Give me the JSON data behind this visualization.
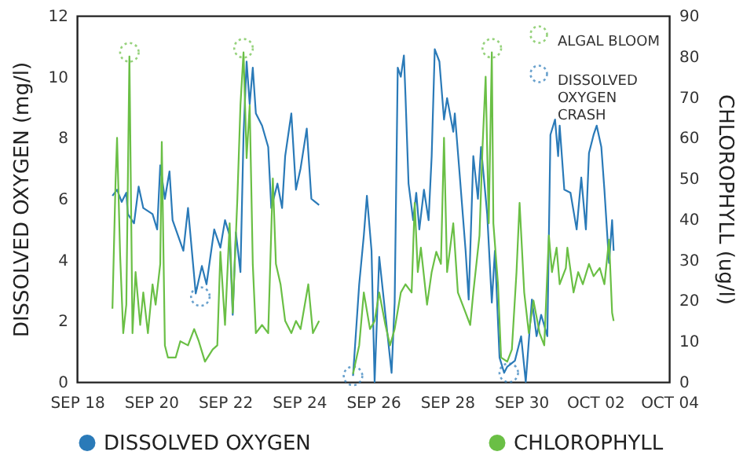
{
  "chart_data": {
    "type": "line",
    "xlabel": null,
    "ylabel": "DISSOLVED OXYGEN (mg/l)",
    "y2label": "CHLOROPHYLL (ug/l)",
    "xlim": [
      "--09-18",
      "--10-04"
    ],
    "xticks": [
      {
        "value": "--09-18",
        "label": "SEP 18"
      },
      {
        "value": "--09-20",
        "label": "SEP 20"
      },
      {
        "value": "--09-22",
        "label": "SEP 22"
      },
      {
        "value": "--09-24",
        "label": "SEP 24"
      },
      {
        "value": "--09-26",
        "label": "SEP 26"
      },
      {
        "value": "--09-28",
        "label": "SEP 28"
      },
      {
        "value": "--09-30",
        "label": "SEP 30"
      },
      {
        "value": "--10-02",
        "label": "OCT 02"
      },
      {
        "value": "--10-04",
        "label": "OCT 04"
      }
    ],
    "ylim": [
      0,
      12
    ],
    "yticks": [
      0,
      2,
      4,
      6,
      8,
      10,
      12
    ],
    "y2lim": [
      0,
      90
    ],
    "y2ticks": [
      0,
      10,
      20,
      30,
      40,
      50,
      60,
      70,
      80,
      90
    ],
    "legend": "bottom",
    "line_style": "solid",
    "series": [
      {
        "name": "DISSOLVED OXYGEN",
        "color": "#2a7ab8",
        "axis": "y",
        "x": [
          "--09-18T23:00",
          "--09-19T02:00",
          "--09-19T05:00",
          "--09-19T08:00",
          "--09-19T09:00",
          "--09-19T13:00",
          "--09-19T16:00",
          "--09-19T19:00",
          "--09-20T01:00",
          "--09-20T04:00",
          "--09-20T06:00",
          "--09-20T09:00",
          "--09-20T12:00",
          "--09-20T14:00",
          "--09-20T21:00",
          "--09-21T00:00",
          "--09-21T05:00",
          "--09-21T09:00",
          "--09-21T12:00",
          "--09-21T17:00",
          "--09-21T21:00",
          "--09-22T00:00",
          "--09-22T03:00",
          "--09-22T05:00",
          "--09-22T07:00",
          "--09-22T10:00",
          "--09-22T12:00",
          "--09-22T14:00",
          "--09-22T16:00",
          "--09-22T18:00",
          "--09-22T20:00",
          "--09-23T00:00",
          "--09-23T04:00",
          "--09-23T06:00",
          "--09-23T10:00",
          "--09-23T13:00",
          "--09-23T15:00",
          "--09-23T19:00",
          "--09-23T22:00",
          "--09-24T01:00",
          "--09-24T05:00",
          "--09-24T08:00",
          "--09-24T13:00",
          "--09-25T00:00",
          "--09-25T11:00",
          "--09-25T15:00",
          "--09-25T18:00",
          "--09-25T20:00",
          "--09-25T23:00",
          "--09-26T01:00",
          "--09-26T04:00",
          "--09-26T08:00",
          "--09-26T12:00",
          "--09-26T14:00",
          "--09-26T16:00",
          "--09-26T18:00",
          "--09-26T20:00",
          "--09-26T21:00",
          "--09-26T23:00",
          "--09-27T02:00",
          "--09-27T04:00",
          "--09-27T06:00",
          "--09-27T09:00",
          "--09-27T12:00",
          "--09-27T14:00",
          "--09-27T16:00",
          "--09-27T19:00",
          "--09-27T22:00",
          "--09-28T00:00",
          "--09-28T04:00",
          "--09-28T05:00",
          "--09-28T08:00",
          "--09-28T12:00",
          "--09-28T14:00",
          "--09-28T17:00",
          "--09-28T20:00",
          "--09-28T22:00",
          "--09-29T02:00",
          "--09-29T05:00",
          "--09-29T07:00",
          "--09-29T10:00",
          "--09-29T13:00",
          "--09-29T15:00",
          "--09-29T20:00",
          "--09-30T00:00",
          "--09-30T03:00",
          "--09-30T07:00",
          "--09-30T10:00",
          "--09-30T13:00",
          "--09-30T17:00",
          "--09-30T19:00",
          "--09-30T22:00",
          "--10-01T00:00",
          "--10-01T01:00",
          "--10-01T04:00",
          "--10-01T08:00",
          "--10-01T12:00",
          "--10-01T15:00",
          "--10-01T18:00",
          "--10-01T20:00",
          "--10-01T23:00",
          "--10-02T01:00",
          "--10-02T04:00",
          "--10-02T06:00",
          "--10-02T09:00",
          "--10-02T11:00",
          "--10-02T12:00"
        ],
        "values": [
          6.1,
          6.3,
          5.9,
          6.2,
          5.5,
          5.2,
          6.4,
          5.7,
          5.5,
          5.0,
          7.1,
          6.0,
          6.9,
          5.3,
          4.3,
          5.7,
          2.9,
          3.8,
          3.2,
          5.0,
          4.4,
          5.3,
          4.8,
          2.2,
          4.9,
          3.6,
          8.1,
          10.5,
          9.1,
          10.3,
          8.8,
          8.4,
          7.7,
          5.7,
          6.5,
          5.7,
          7.4,
          8.8,
          6.3,
          7.0,
          8.3,
          6.0,
          5.8,
          null,
          0.2,
          3.2,
          4.8,
          6.1,
          4.3,
          0.0,
          4.1,
          2.2,
          0.3,
          2.6,
          10.3,
          10.0,
          10.7,
          9.4,
          6.5,
          5.3,
          6.2,
          5.0,
          6.3,
          5.3,
          7.4,
          10.9,
          10.5,
          8.6,
          9.3,
          8.2,
          8.8,
          6.9,
          4.3,
          2.7,
          7.4,
          6.0,
          7.7,
          5.5,
          2.6,
          4.3,
          0.8,
          0.3,
          0.5,
          0.7,
          1.5,
          0.0,
          2.7,
          1.5,
          2.2,
          1.5,
          8.1,
          8.6,
          7.4,
          8.4,
          6.3,
          6.2,
          5.0,
          6.7,
          5.0,
          7.5,
          8.1,
          8.4,
          7.7,
          6.3,
          3.9,
          5.3,
          4.3
        ]
      },
      {
        "name": "CHLOROPHYLL",
        "color": "#6abf45",
        "axis": "y2",
        "x": [
          "--09-18T23:00",
          "--09-19T01:00",
          "--09-19T02:00",
          "--09-19T04:00",
          "--09-19T06:00",
          "--09-19T08:00",
          "--09-19T10:00",
          "--09-19T12:00",
          "--09-19T14:00",
          "--09-19T17:00",
          "--09-19T19:00",
          "--09-19T22:00",
          "--09-20T01:00",
          "--09-20T03:00",
          "--09-20T06:00",
          "--09-20T07:00",
          "--09-20T09:00",
          "--09-20T11:00",
          "--09-20T16:00",
          "--09-20T19:00",
          "--09-21T00:00",
          "--09-21T04:00",
          "--09-21T07:00",
          "--09-21T11:00",
          "--09-21T16:00",
          "--09-21T19:00",
          "--09-21T21:00",
          "--09-22T00:00",
          "--09-22T03:00",
          "--09-22T05:00",
          "--09-22T08:00",
          "--09-22T10:00",
          "--09-22T12:00",
          "--09-22T14:00",
          "--09-22T16:00",
          "--09-22T18:00",
          "--09-22T20:00",
          "--09-23T00:00",
          "--09-23T04:00",
          "--09-23T07:00",
          "--09-23T09:00",
          "--09-23T12:00",
          "--09-23T15:00",
          "--09-23T19:00",
          "--09-23T22:00",
          "--09-24T01:00",
          "--09-24T06:00",
          "--09-24T09:00",
          "--09-24T13:00",
          "--09-25T00:00",
          "--09-25T11:00",
          "--09-25T15:00",
          "--09-25T18:00",
          "--09-25T22:00",
          "--09-26T01:00",
          "--09-26T04:00",
          "--09-26T08:00",
          "--09-26T11:00",
          "--09-26T14:00",
          "--09-26T18:00",
          "--09-26T21:00",
          "--09-27T01:00",
          "--09-27T03:00",
          "--09-27T05:00",
          "--09-27T07:00",
          "--09-27T11:00",
          "--09-27T14:00",
          "--09-27T17:00",
          "--09-27T20:00",
          "--09-27T22:00",
          "--09-28T00:00",
          "--09-28T04:00",
          "--09-28T07:00",
          "--09-28T12:00",
          "--09-28T15:00",
          "--09-28T17:00",
          "--09-28T21:00",
          "--09-28T23:00",
          "--09-29T01:00",
          "--09-29T03:00",
          "--09-29T05:00",
          "--09-29T06:00",
          "--09-29T09:00",
          "--09-29T11:00",
          "--09-29T15:00",
          "--09-29T18:00",
          "--09-29T21:00",
          "--09-29T23:00",
          "--09-30T02:00",
          "--09-30T05:00",
          "--09-30T08:00",
          "--09-30T12:00",
          "--09-30T15:00",
          "--09-30T18:00",
          "--09-30T20:00",
          "--09-30T23:00",
          "--10-01T01:00",
          "--10-01T05:00",
          "--10-01T06:00",
          "--10-01T10:00",
          "--10-01T13:00",
          "--10-01T16:00",
          "--10-01T20:00",
          "--10-01T23:00",
          "--10-02T03:00",
          "--10-02T06:00",
          "--10-02T09:00",
          "--10-02T11:00",
          "--10-02T12:00"
        ],
        "values": [
          18,
          49,
          60,
          31,
          12,
          19,
          80,
          12,
          27,
          14,
          22,
          12,
          24,
          19,
          29,
          59,
          9,
          6,
          6,
          10,
          9,
          13,
          10,
          5,
          8,
          9,
          32,
          14,
          39,
          17,
          45,
          68,
          81,
          55,
          68,
          29,
          12,
          14,
          12,
          50,
          29,
          24,
          15,
          12,
          15,
          13,
          24,
          12,
          15,
          null,
          2,
          9,
          22,
          13,
          15,
          22,
          14,
          9,
          13,
          22,
          24,
          22,
          44,
          27,
          33,
          19,
          27,
          32,
          29,
          60,
          27,
          39,
          22,
          17,
          14,
          22,
          36,
          58,
          75,
          39,
          81,
          39,
          24,
          6,
          5,
          8,
          27,
          44,
          22,
          12,
          20,
          12,
          9,
          36,
          27,
          33,
          24,
          28,
          33,
          22,
          27,
          24,
          29,
          26,
          28,
          24,
          35,
          17,
          15
        ]
      },
      {
        "name": "ALGAL BLOOM",
        "type": "scatter",
        "marker": "circle",
        "line_style": "dotted",
        "color": "#6abf45",
        "axis": "y2",
        "x": [
          "--09-19T10:00",
          "--09-22T12:00",
          "--09-29T05:00"
        ],
        "values": [
          81,
          82,
          82
        ]
      },
      {
        "name": "DISSOLVED OXYGEN CRASH",
        "type": "scatter",
        "marker": "circle",
        "line_style": "dotted",
        "color": "#2a7ab8",
        "axis": "y",
        "x": [
          "--09-21T08:00",
          "--09-25T11:00",
          "--09-29T16:00"
        ],
        "values": [
          2.8,
          0.2,
          0.3
        ]
      }
    ]
  }
}
